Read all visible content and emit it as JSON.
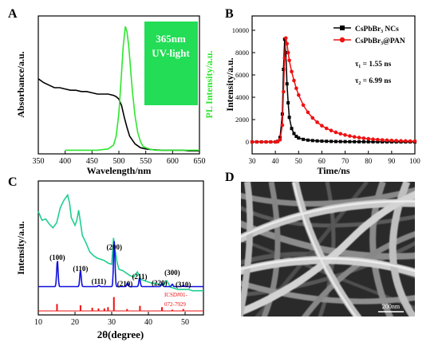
{
  "panels": {
    "a": {
      "label": "A",
      "inset_line1": "365nm",
      "inset_line2": "UV-light",
      "inset_color": "#22dd55",
      "absorbance_color": "#000000",
      "pl_color": "#2ee62e",
      "chart_data": {
        "type": "line",
        "xlabel": "Wavelength/nm",
        "ylabel_left": "Absorbance/a.u.",
        "ylabel_right": "PL Intensity/a.u.",
        "xlim": [
          350,
          650
        ],
        "xticks": [
          350,
          400,
          450,
          500,
          550,
          600,
          650
        ],
        "ylim": [
          0,
          1
        ],
        "series": [
          {
            "name": "Absorbance",
            "x": [
              350,
              360,
              370,
              380,
              390,
              400,
              410,
              420,
              430,
              440,
              450,
              460,
              470,
              480,
              490,
              495,
              500,
              505,
              510,
              515,
              520,
              530,
              540,
              550,
              560,
              570,
              580,
              590,
              600,
              610,
              620,
              630,
              640,
              650
            ],
            "y": [
              0.57,
              0.54,
              0.52,
              0.5,
              0.5,
              0.49,
              0.48,
              0.48,
              0.47,
              0.47,
              0.46,
              0.45,
              0.45,
              0.45,
              0.44,
              0.43,
              0.41,
              0.36,
              0.27,
              0.19,
              0.12,
              0.06,
              0.03,
              0.02,
              0.015,
              0.012,
              0.01,
              0.01,
              0.01,
              0.01,
              0.01,
              0.005,
              0.005,
              0.005
            ]
          },
          {
            "name": "PL",
            "x": [
              400,
              460,
              480,
              490,
              495,
              500,
              505,
              508,
              512,
              515,
              518,
              520,
              525,
              530,
              535,
              540,
              545,
              550,
              560,
              570,
              580,
              600,
              650
            ],
            "y": [
              0.01,
              0.01,
              0.02,
              0.05,
              0.12,
              0.3,
              0.62,
              0.82,
              0.98,
              0.94,
              0.84,
              0.74,
              0.48,
              0.28,
              0.15,
              0.08,
              0.04,
              0.03,
              0.015,
              0.01,
              0.01,
              0.01,
              0.01
            ]
          }
        ]
      }
    },
    "b": {
      "label": "B",
      "legend": [
        {
          "label": "CsPbBr₃ NCs",
          "color": "#000000"
        },
        {
          "label": "CsPbBr₃@PAN",
          "color": "#ee1111"
        }
      ],
      "tau1": "τ₁ = 1.55 ns",
      "tau2": "τ₂ = 6.99 ns",
      "chart_data": {
        "type": "line",
        "xlabel": "Time/ns",
        "ylabel": "Intensity/a.u.",
        "xlim": [
          30,
          100
        ],
        "ylim": [
          0,
          10000
        ],
        "xticks": [
          30,
          40,
          50,
          60,
          70,
          80,
          90,
          100
        ],
        "yticks": [
          0,
          2000,
          4000,
          6000,
          8000,
          10000
        ],
        "series": [
          {
            "name": "CsPbBr₃ NCs",
            "x": [
              30,
              32,
              34,
              36,
              38,
              40,
              41,
              42,
              43,
              43.5,
              44,
              44.5,
              45,
              45.5,
              46,
              47,
              48,
              49,
              50,
              52,
              54,
              56,
              58,
              60,
              62,
              64,
              66,
              68,
              70,
              72,
              74,
              76,
              78,
              80,
              82,
              84,
              86,
              88,
              90,
              92,
              94,
              96,
              98,
              100
            ],
            "y": [
              0,
              0,
              0,
              0,
              0,
              0,
              50,
              400,
              2500,
              6500,
              9200,
              8000,
              5200,
              3500,
              2200,
              1200,
              750,
              500,
              350,
              230,
              160,
              120,
              90,
              70,
              55,
              45,
              35,
              30,
              25,
              20,
              18,
              15,
              12,
              10,
              8,
              6,
              5,
              4,
              3,
              2,
              2,
              1,
              1,
              0
            ]
          },
          {
            "name": "CsPbBr₃@PAN",
            "x": [
              30,
              32,
              34,
              36,
              38,
              40,
              41,
              42,
              43,
              43.5,
              44,
              44.5,
              45,
              45.5,
              46,
              47,
              48,
              49,
              50,
              52,
              54,
              56,
              58,
              60,
              62,
              64,
              66,
              68,
              70,
              72,
              74,
              76,
              78,
              80,
              82,
              84,
              86,
              88,
              90,
              92,
              94,
              96,
              98,
              100
            ],
            "y": [
              0,
              0,
              0,
              0,
              0,
              0,
              30,
              200,
              1500,
              4500,
              7500,
              9300,
              8800,
              8000,
              7300,
              6300,
              5500,
              4800,
              4200,
              3300,
              2650,
              2150,
              1760,
              1450,
              1210,
              1020,
              860,
              730,
              620,
              530,
              450,
              385,
              330,
              280,
              240,
              205,
              175,
              150,
              128,
              110,
              95,
              82,
              70,
              60
            ]
          }
        ]
      }
    },
    "c": {
      "label": "C",
      "ref_label_1": "ICSD#01-",
      "ref_label_2": "072-7929",
      "peak_labels": [
        "(100)",
        "(110)",
        "(111)",
        "(200)",
        "(210)",
        "(211)",
        "(220)",
        "(300)",
        "(310)"
      ],
      "composite_color": "#1fcf8f",
      "nc_color": "#1010dd",
      "ref_color": "#ee1111",
      "chart_data": {
        "type": "line",
        "xlabel": "2θ(degree)",
        "ylabel": "Intensity/a.u.",
        "xlim": [
          10,
          55
        ],
        "xticks": [
          10,
          20,
          30,
          40,
          50
        ],
        "series": [
          {
            "name": "CsPbBr₃@PAN",
            "x": [
              10,
              11,
              12,
              13,
              14,
              15,
              16,
              17,
              18,
              18.5,
              19,
              20,
              20.5,
              21,
              21.5,
              22,
              23,
              24,
              25,
              26,
              27,
              28,
              29,
              30,
              30.5,
              31,
              31.5,
              32,
              33,
              34,
              35,
              36,
              37,
              38,
              39,
              40,
              41,
              42,
              43,
              44,
              45,
              46,
              47,
              48,
              49,
              50,
              51,
              52,
              53,
              54,
              55
            ],
            "y": [
              0.79,
              0.72,
              0.73,
              0.69,
              0.66,
              0.7,
              0.82,
              0.88,
              0.92,
              0.86,
              0.74,
              0.68,
              0.72,
              0.8,
              0.7,
              0.6,
              0.54,
              0.47,
              0.44,
              0.42,
              0.41,
              0.4,
              0.38,
              0.37,
              0.58,
              0.47,
              0.38,
              0.33,
              0.32,
              0.3,
              0.28,
              0.27,
              0.31,
              0.25,
              0.24,
              0.23,
              0.22,
              0.22,
              0.21,
              0.2,
              0.24,
              0.19,
              0.18,
              0.17,
              0.17,
              0.17,
              0.17,
              0.16,
              0.16,
              0.16,
              0.16
            ]
          },
          {
            "name": "CsPbBr₃ NCs",
            "peaks": [
              {
                "x": 15.2,
                "h": 0.21
              },
              {
                "x": 21.5,
                "h": 0.13
              },
              {
                "x": 26.5,
                "h": 0.01
              },
              {
                "x": 30.7,
                "h": 0.36
              },
              {
                "x": 34.3,
                "h": 0.03
              },
              {
                "x": 37.6,
                "h": 0.07
              },
              {
                "x": 43.7,
                "h": 0.03
              },
              {
                "x": 46.5,
                "h": 0.02
              },
              {
                "x": 49.5,
                "h": 0.01
              }
            ],
            "baseline": 0.06
          },
          {
            "name": "ICSD#01-072-7929",
            "sticks": [
              {
                "x": 15.1,
                "h": 0.055
              },
              {
                "x": 21.5,
                "h": 0.045
              },
              {
                "x": 24.7,
                "h": 0.025
              },
              {
                "x": 26.4,
                "h": 0.02
              },
              {
                "x": 28.0,
                "h": 0.02
              },
              {
                "x": 29.0,
                "h": 0.03
              },
              {
                "x": 30.6,
                "h": 0.11
              },
              {
                "x": 34.2,
                "h": 0.015
              },
              {
                "x": 37.7,
                "h": 0.04
              },
              {
                "x": 43.7,
                "h": 0.03
              },
              {
                "x": 46.5,
                "h": 0.01
              },
              {
                "x": 49.5,
                "h": 0.015
              }
            ]
          }
        ]
      }
    },
    "d": {
      "label": "D",
      "scale_text": "200nm"
    }
  }
}
